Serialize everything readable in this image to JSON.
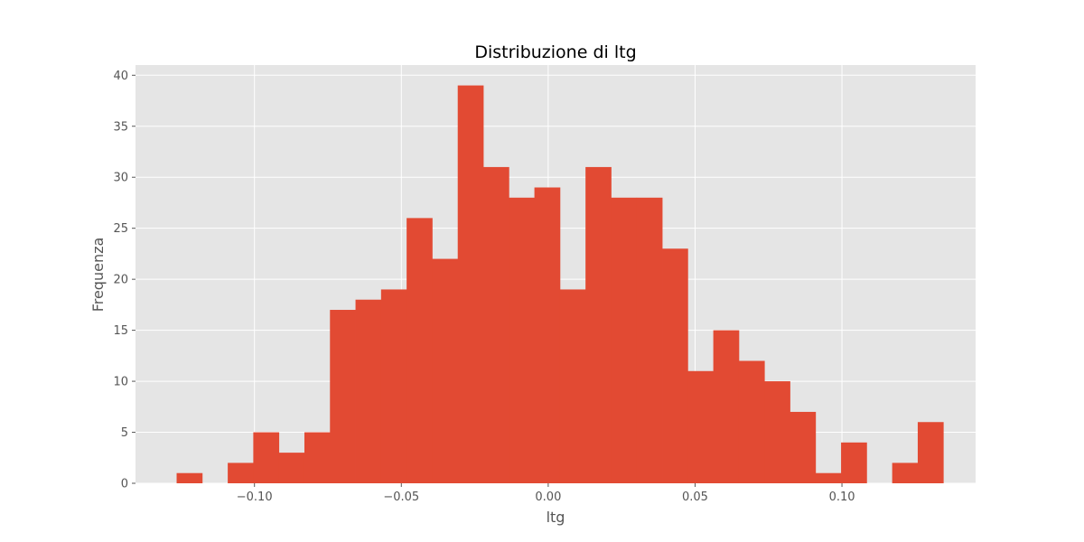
{
  "chart_data": {
    "type": "bar",
    "title": "Distribuzione di ltg",
    "xlabel": "ltg",
    "ylabel": "Frequenza",
    "xlim": [
      -0.1405,
      0.1455
    ],
    "ylim": [
      0,
      41
    ],
    "grid": true,
    "colors": {
      "bar": "#E24A33",
      "background": "#E5E5E5",
      "grid": "#ffffff"
    },
    "x_ticks": [
      {
        "value": -0.1,
        "label": "−0.10"
      },
      {
        "value": -0.05,
        "label": "−0.05"
      },
      {
        "value": 0.0,
        "label": "0.00"
      },
      {
        "value": 0.05,
        "label": "0.05"
      },
      {
        "value": 0.1,
        "label": "0.10"
      }
    ],
    "y_ticks": [
      {
        "value": 0,
        "label": "0"
      },
      {
        "value": 5,
        "label": "5"
      },
      {
        "value": 10,
        "label": "10"
      },
      {
        "value": 15,
        "label": "15"
      },
      {
        "value": 20,
        "label": "20"
      },
      {
        "value": 25,
        "label": "25"
      },
      {
        "value": 30,
        "label": "30"
      },
      {
        "value": 35,
        "label": "35"
      },
      {
        "value": 40,
        "label": "40"
      }
    ],
    "bin_edges": [
      -0.1265,
      -0.1178,
      -0.1091,
      -0.1004,
      -0.0917,
      -0.083,
      -0.0743,
      -0.0656,
      -0.0569,
      -0.0482,
      -0.0395,
      -0.0308,
      -0.0221,
      -0.0134,
      -0.0047,
      0.004,
      0.0127,
      0.0214,
      0.0301,
      0.0388,
      0.0475,
      0.0562,
      0.0649,
      0.0736,
      0.0823,
      0.091,
      0.0997,
      0.1084,
      0.1171,
      0.1258,
      0.1345
    ],
    "counts": [
      1,
      0,
      2,
      5,
      3,
      5,
      17,
      18,
      19,
      26,
      22,
      39,
      31,
      28,
      29,
      19,
      31,
      28,
      28,
      23,
      11,
      15,
      12,
      10,
      7,
      1,
      4,
      0,
      2,
      6
    ]
  }
}
